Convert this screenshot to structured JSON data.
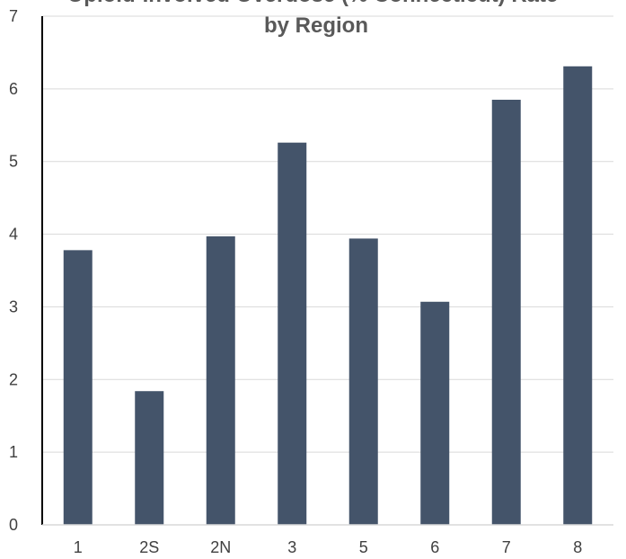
{
  "chart_data": {
    "type": "bar",
    "title": "Opioid-Involved Overdose (% Connecticut) Rate by Region",
    "title_lines": [
      "Opioid-Involved Overdose (% Connecticut) Rate",
      "by Region"
    ],
    "categories": [
      "1",
      "2S",
      "2N",
      "3",
      "5",
      "6",
      "7",
      "8"
    ],
    "values": [
      3.78,
      1.84,
      3.97,
      5.26,
      3.94,
      3.07,
      5.85,
      6.31
    ],
    "xlabel": "",
    "ylabel": "",
    "ylim": [
      0,
      7
    ],
    "yticks": [
      "0",
      "1",
      "2",
      "3",
      "4",
      "5",
      "6",
      "7"
    ],
    "grid": true,
    "legend": "none",
    "colors": {
      "bar": "#44546a",
      "grid": "#d9d9d9",
      "axis": "#000000",
      "text": "#404040"
    }
  }
}
